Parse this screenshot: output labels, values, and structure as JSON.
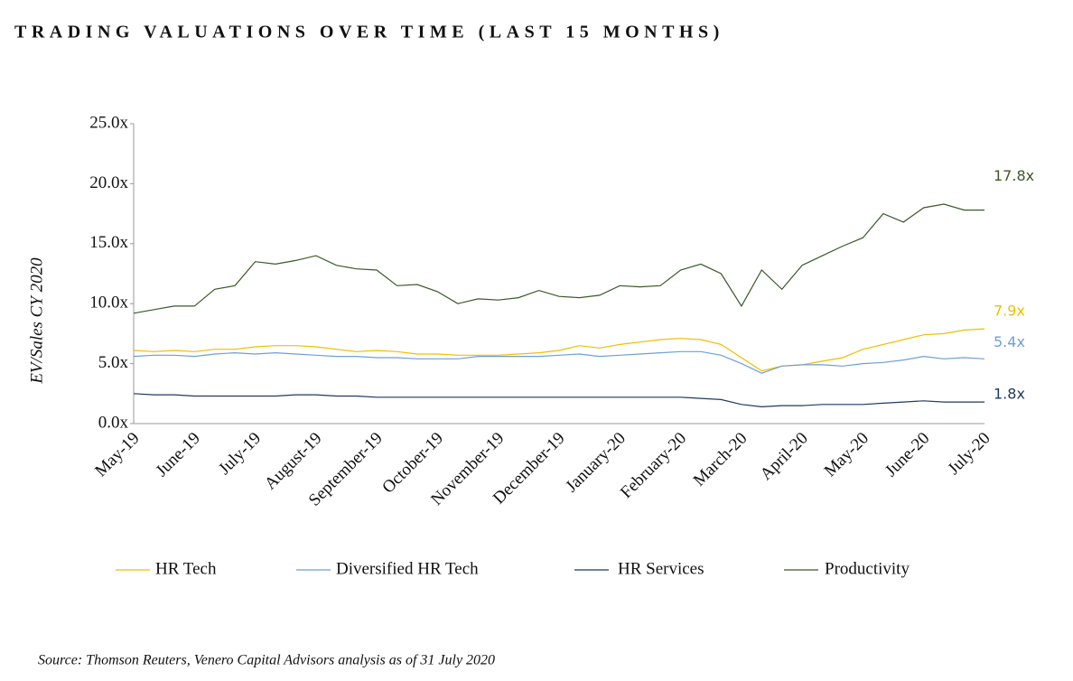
{
  "chart_data": {
    "type": "line",
    "title": "TRADING VALUATIONS OVER TIME (LAST 15 MONTHS)",
    "y_label": "EV/Sales CY 2020",
    "source": "Source: Thomson Reuters, Venero Capital Advisors analysis as of 31 July 2020",
    "categories": [
      "May-19",
      null,
      null,
      "June-19",
      null,
      null,
      "July-19",
      null,
      null,
      "August-19",
      null,
      null,
      "September-19",
      null,
      null,
      "October-19",
      null,
      null,
      "November-19",
      null,
      null,
      "December-19",
      null,
      null,
      "January-20",
      null,
      null,
      "February-20",
      null,
      null,
      "March-20",
      null,
      null,
      "April-20",
      null,
      null,
      "May-20",
      null,
      null,
      "June-20",
      null,
      null,
      "July-20"
    ],
    "ylim": [
      0,
      25
    ],
    "yticks": [
      {
        "value": 0,
        "label": "0.0x"
      },
      {
        "value": 5,
        "label": "5.0x"
      },
      {
        "value": 10,
        "label": "10.0x"
      },
      {
        "value": 15,
        "label": "15.0x"
      },
      {
        "value": 20,
        "label": "20.0x"
      },
      {
        "value": 25,
        "label": "25.0x"
      }
    ],
    "series": [
      {
        "name": "HR Tech",
        "color": "#f2bd00",
        "end_label": "7.9x",
        "values": [
          6.1,
          6.0,
          6.1,
          6.0,
          6.2,
          6.2,
          6.4,
          6.5,
          6.5,
          6.4,
          6.2,
          6.0,
          6.1,
          6.0,
          5.8,
          5.8,
          5.7,
          5.7,
          5.7,
          5.8,
          5.9,
          6.1,
          6.5,
          6.3,
          6.6,
          6.8,
          7.0,
          7.1,
          7.0,
          6.6,
          5.5,
          4.4,
          4.8,
          4.9,
          5.2,
          5.5,
          6.2,
          6.6,
          7.0,
          7.4,
          7.5,
          7.8,
          7.9
        ]
      },
      {
        "name": "Diversified HR Tech",
        "color": "#6f9fd8",
        "end_label": "5.4x",
        "values": [
          5.6,
          5.7,
          5.7,
          5.6,
          5.8,
          5.9,
          5.8,
          5.9,
          5.8,
          5.7,
          5.6,
          5.6,
          5.5,
          5.5,
          5.4,
          5.4,
          5.4,
          5.6,
          5.6,
          5.6,
          5.6,
          5.7,
          5.8,
          5.6,
          5.7,
          5.8,
          5.9,
          6.0,
          6.0,
          5.7,
          5.0,
          4.2,
          4.8,
          4.9,
          4.9,
          4.8,
          5.0,
          5.1,
          5.3,
          5.6,
          5.4,
          5.5,
          5.4
        ]
      },
      {
        "name": "HR Services",
        "color": "#1f3a60",
        "end_label": "1.8x",
        "values": [
          2.5,
          2.4,
          2.4,
          2.3,
          2.3,
          2.3,
          2.3,
          2.3,
          2.4,
          2.4,
          2.3,
          2.3,
          2.2,
          2.2,
          2.2,
          2.2,
          2.2,
          2.2,
          2.2,
          2.2,
          2.2,
          2.2,
          2.2,
          2.2,
          2.2,
          2.2,
          2.2,
          2.2,
          2.1,
          2.0,
          1.6,
          1.4,
          1.5,
          1.5,
          1.6,
          1.6,
          1.6,
          1.7,
          1.8,
          1.9,
          1.8,
          1.8,
          1.8
        ]
      },
      {
        "name": "Productivity",
        "color": "#3a5a28",
        "end_label": "17.8x",
        "values": [
          9.2,
          9.5,
          9.8,
          9.8,
          11.2,
          11.5,
          13.5,
          13.3,
          13.6,
          14.0,
          13.2,
          12.9,
          12.8,
          11.5,
          11.6,
          11.0,
          10.0,
          10.4,
          10.3,
          10.5,
          11.1,
          10.6,
          10.5,
          10.7,
          11.5,
          11.4,
          11.5,
          12.8,
          13.3,
          12.5,
          9.8,
          12.8,
          11.2,
          13.2,
          14.0,
          14.8,
          15.5,
          17.5,
          16.8,
          18.0,
          18.3,
          17.8,
          17.8
        ]
      }
    ]
  }
}
